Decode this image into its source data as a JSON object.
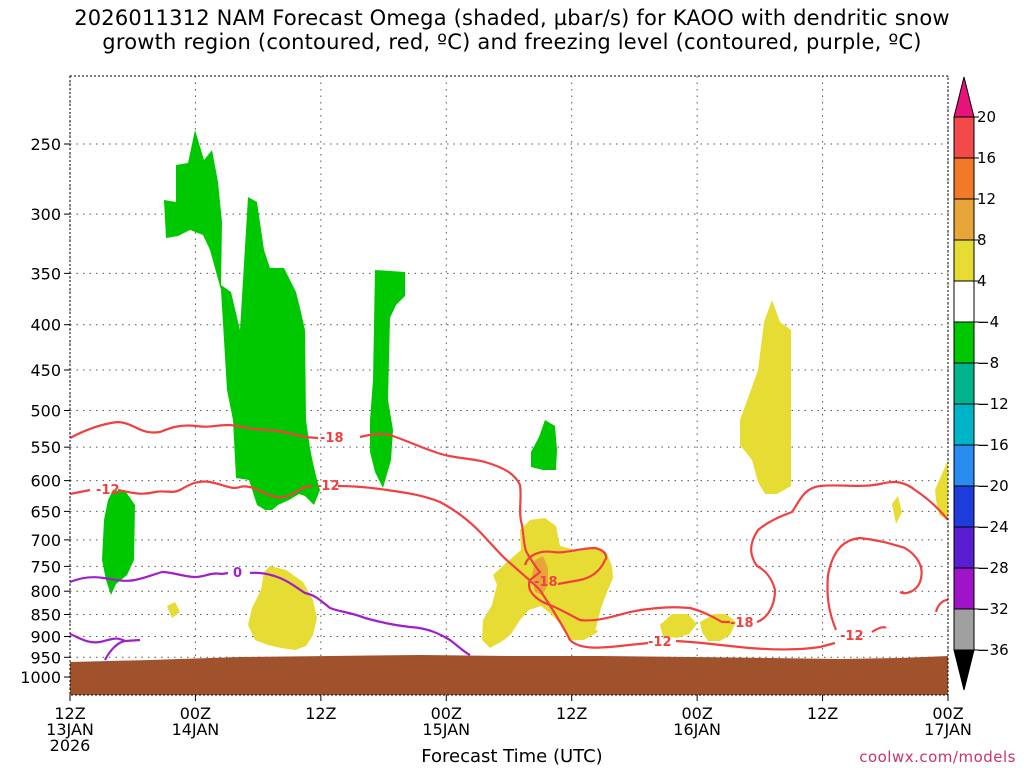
{
  "title_line1": "2026011312 NAM Forecast Omega (shaded, µbar/s) for KAOO with dendritic snow",
  "title_line2": "growth region (contoured, red, ºC) and freezing level (contoured, purple, ºC)",
  "credit": "coolwx.com/models",
  "chart_data": {
    "type": "contour",
    "xlabel": "Forecast Time (UTC)",
    "ylabel": "",
    "x_range_hours": [
      0,
      84
    ],
    "y_range_hpa": [
      210,
      1040
    ],
    "y_scale": "log-pressure (inverted)",
    "grid": "dotted",
    "y_ticks": [
      250,
      300,
      350,
      400,
      450,
      500,
      550,
      600,
      650,
      700,
      750,
      800,
      850,
      900,
      950,
      1000
    ],
    "x_ticks": [
      {
        "hour": 0,
        "line1": "12Z",
        "line2": "13JAN",
        "line3": "2026"
      },
      {
        "hour": 12,
        "line1": "00Z",
        "line2": "14JAN",
        "line3": ""
      },
      {
        "hour": 24,
        "line1": "12Z",
        "line2": "",
        "line3": ""
      },
      {
        "hour": 36,
        "line1": "00Z",
        "line2": "15JAN",
        "line3": ""
      },
      {
        "hour": 48,
        "line1": "12Z",
        "line2": "",
        "line3": ""
      },
      {
        "hour": 60,
        "line1": "00Z",
        "line2": "16JAN",
        "line3": ""
      },
      {
        "hour": 72,
        "line1": "12Z",
        "line2": "",
        "line3": ""
      },
      {
        "hour": 84,
        "line1": "00Z",
        "line2": "17JAN",
        "line3": ""
      }
    ],
    "colorbar": {
      "labels": [
        "20",
        "16",
        "12",
        "8",
        "4",
        "−4",
        "−8",
        "−12",
        "−16",
        "−20",
        "−24",
        "−28",
        "−32",
        "−36"
      ],
      "colors": [
        "#f24a4a",
        "#f07a2a",
        "#e8a53a",
        "#e6dc34",
        "#ffffff",
        "#00c800",
        "#00b48c",
        "#00b4c8",
        "#2a8cf0",
        "#1e3cdc",
        "#5a1ed2",
        "#a014c8",
        "#a0a0a0"
      ],
      "top_arrow_color": "#e6147a",
      "bottom_arrow_color": "#000000"
    },
    "omega_regions": [
      {
        "name": "upward-motion-upper-troposphere",
        "level_range_hpa": [
          235,
          650
        ],
        "hour_range": [
          9,
          24
        ],
        "value_range": [
          -8,
          -4
        ]
      },
      {
        "name": "upward-motion-narrow-column",
        "level_range_hpa": [
          345,
          620
        ],
        "hour_range": [
          29,
          32
        ],
        "value_range": [
          -8,
          -4
        ]
      },
      {
        "name": "upward-motion-low-level",
        "level_range_hpa": [
          615,
          805
        ],
        "hour_range": [
          3,
          6.5
        ],
        "value_range": [
          -8,
          -4
        ]
      },
      {
        "name": "upward-motion-small",
        "level_range_hpa": [
          505,
          570
        ],
        "hour_range": [
          44,
          47
        ],
        "value_range": [
          -8,
          -4
        ]
      },
      {
        "name": "sinking-motion-low-level",
        "level_range_hpa": [
          650,
          925
        ],
        "hour_range": [
          41,
          52
        ],
        "value_range": [
          4,
          8
        ]
      },
      {
        "name": "sinking-motion-core",
        "level_range_hpa": [
          745,
          800
        ],
        "hour_range": [
          45.5,
          47
        ],
        "value_range": [
          8,
          12
        ]
      },
      {
        "name": "sinking-motion-mid-level",
        "level_range_hpa": [
          375,
          650
        ],
        "hour_range": [
          64,
          69
        ],
        "value_range": [
          4,
          8
        ]
      },
      {
        "name": "sinking-motion-boundary",
        "level_range_hpa": [
          760,
          920
        ],
        "hour_range": [
          17,
          23.5
        ],
        "value_range": [
          4,
          8
        ]
      }
    ],
    "contours": [
      {
        "name": "dgz-minus18",
        "label": "-18",
        "color": "#f04040"
      },
      {
        "name": "dgz-minus12",
        "label": "-12",
        "color": "#f04040"
      },
      {
        "name": "freezing-level",
        "label": "0",
        "color": "#a020c8"
      }
    ],
    "terrain_color": "#a0522d",
    "surface_pressure_hpa": 955
  }
}
